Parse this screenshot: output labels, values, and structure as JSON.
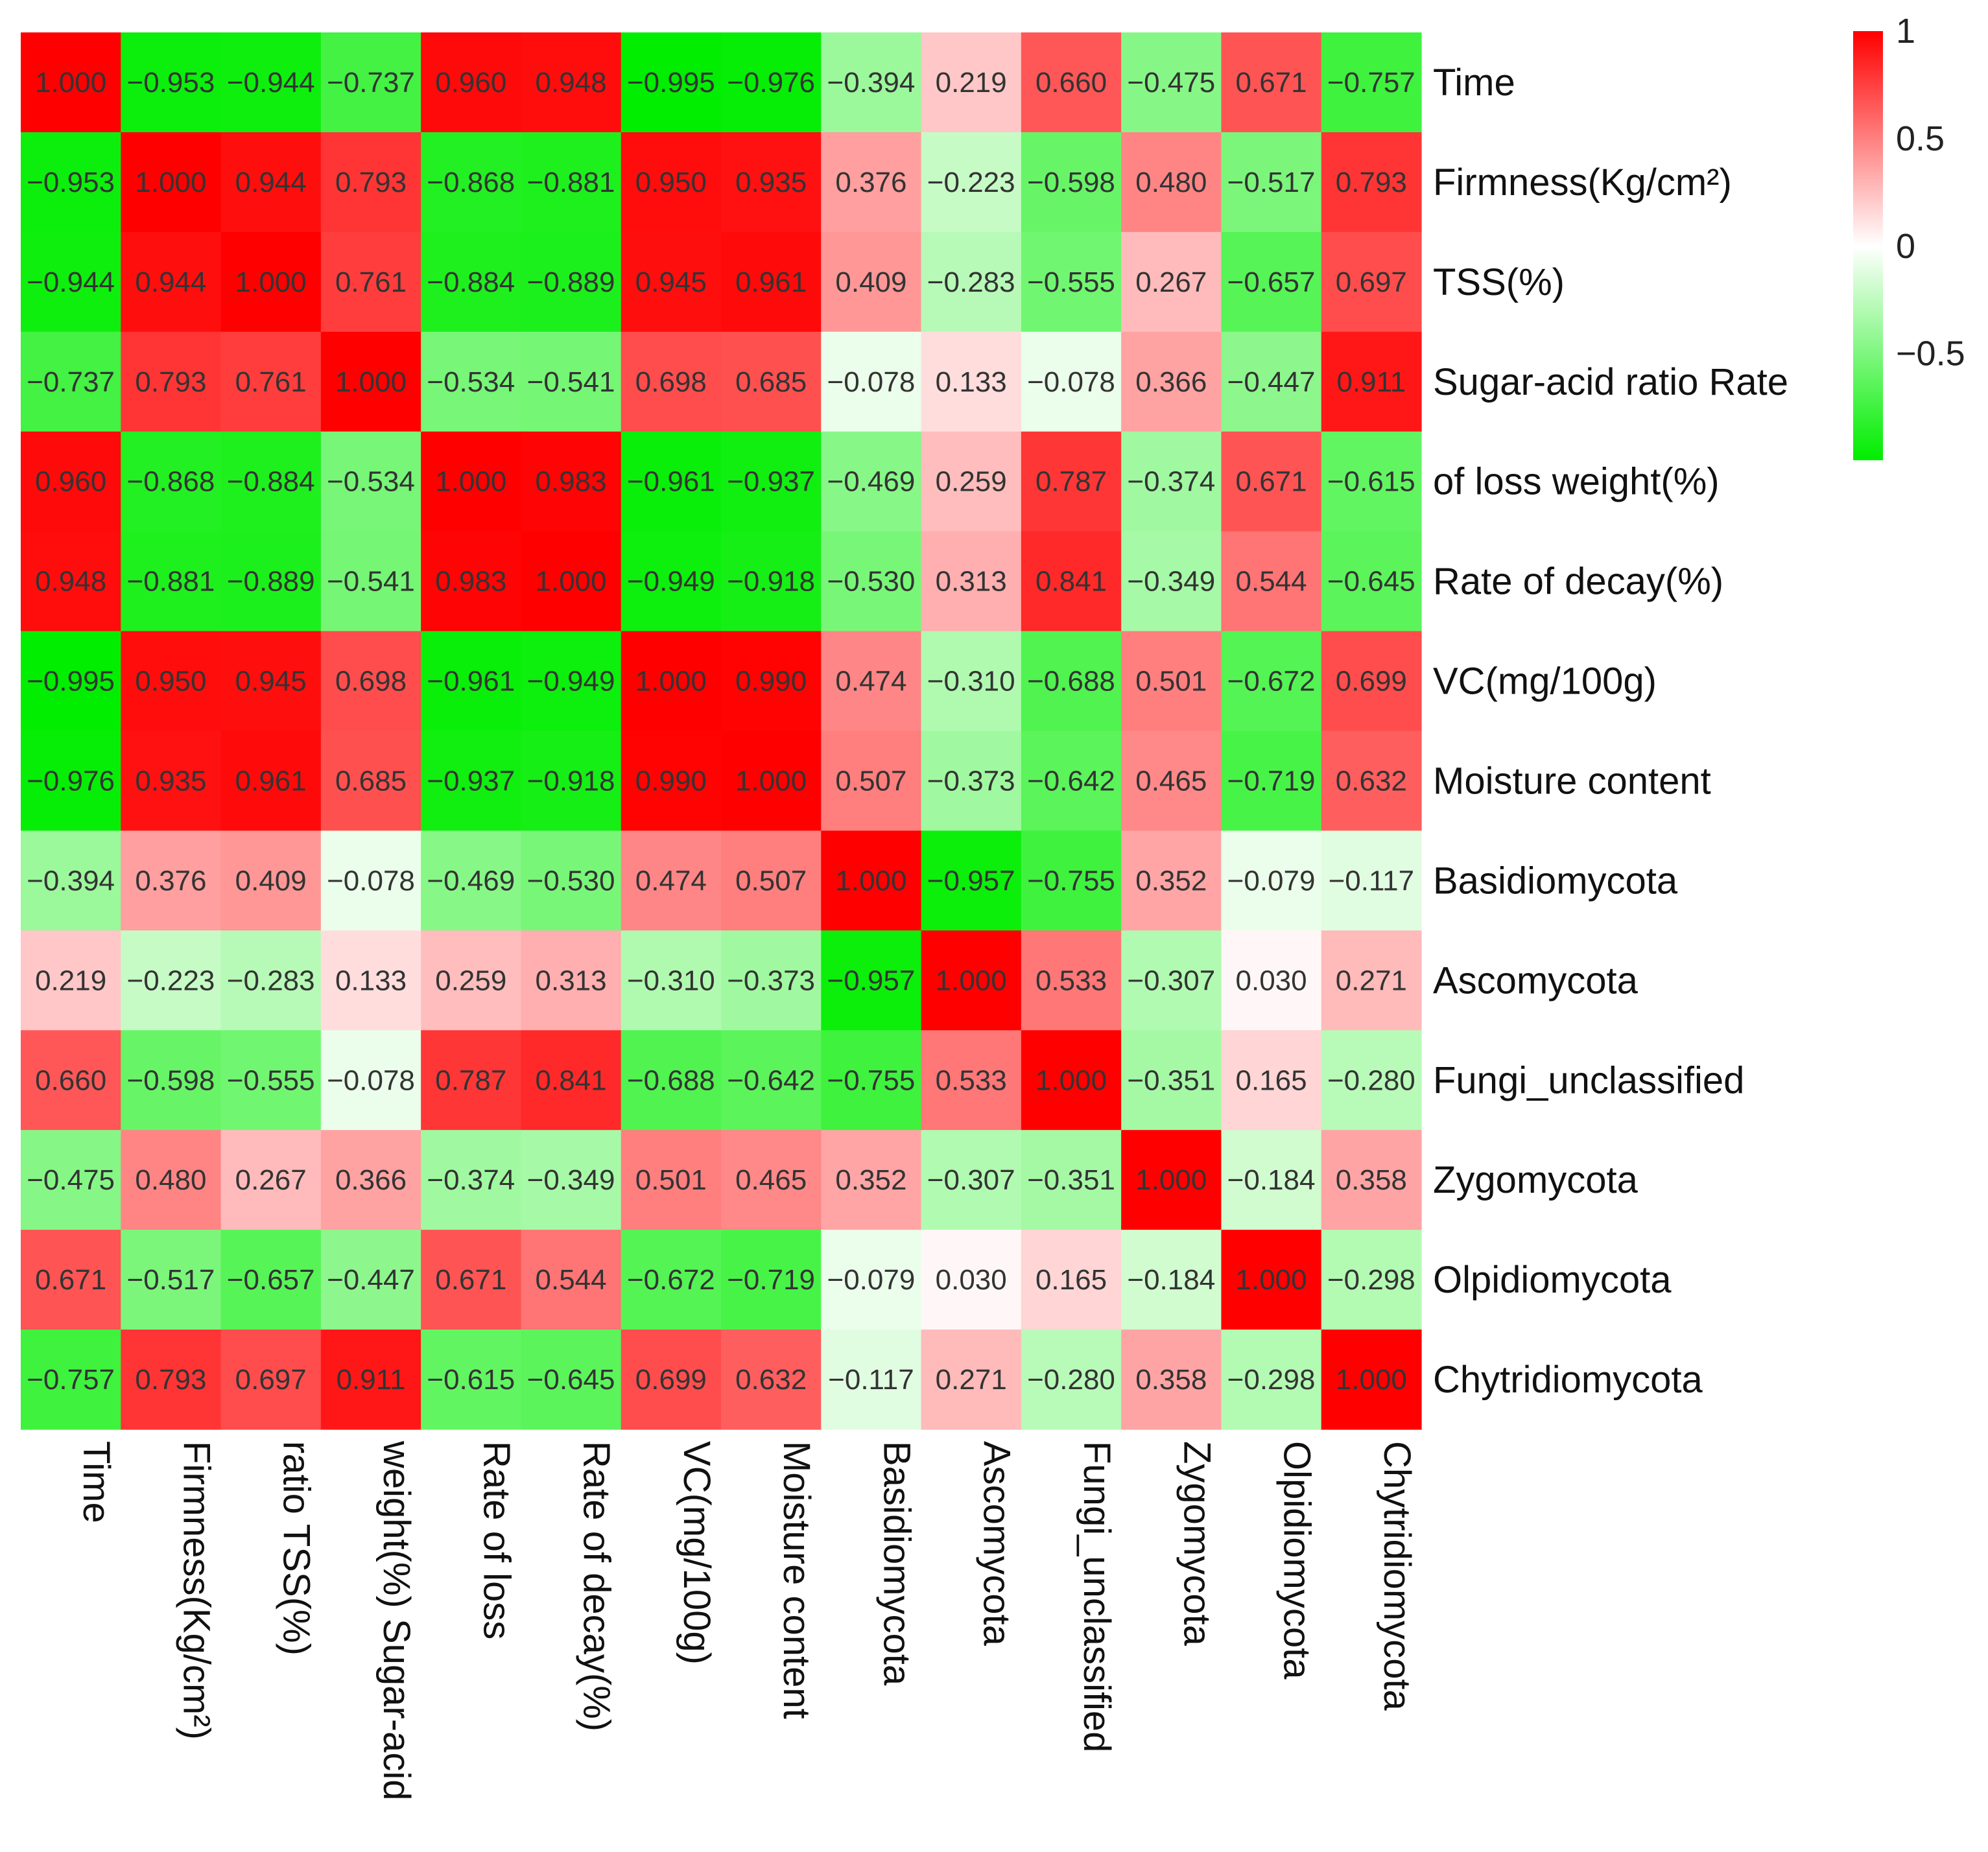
{
  "chart_data": {
    "type": "heatmap",
    "title": "",
    "row_labels": [
      "Time",
      "Firmness(Kg/cm²)",
      "TSS(%)",
      "Sugar-acid ratio Rate",
      "of loss weight(%)",
      "Rate of decay(%)",
      "VC(mg/100g)",
      "Moisture content",
      "Basidiomycota",
      "Ascomycota",
      "Fungi_unclassified",
      "Zygomycota",
      "Olpidiomycota",
      "Chytridiomycota"
    ],
    "col_labels": [
      "Time",
      "Firmness(Kg/cm²)",
      "ratio TSS(%)",
      "weight(%) Sugar-acid",
      "Rate of loss",
      "Rate of decay(%)",
      "VC(mg/100g)",
      "Moisture content",
      "Basidiomycota",
      "Ascomycota",
      "Fungi_unclassified",
      "Zygomycota",
      "Olpidiomycota",
      "Chytridiomycota"
    ],
    "values": [
      [
        1.0,
        -0.953,
        -0.944,
        -0.737,
        0.96,
        0.948,
        -0.995,
        -0.976,
        -0.394,
        0.219,
        0.66,
        -0.475,
        0.671,
        -0.757
      ],
      [
        -0.953,
        1.0,
        0.944,
        0.793,
        -0.868,
        -0.881,
        0.95,
        0.935,
        0.376,
        -0.223,
        -0.598,
        0.48,
        -0.517,
        0.793
      ],
      [
        -0.944,
        0.944,
        1.0,
        0.761,
        -0.884,
        -0.889,
        0.945,
        0.961,
        0.409,
        -0.283,
        -0.555,
        0.267,
        -0.657,
        0.697
      ],
      [
        -0.737,
        0.793,
        0.761,
        1.0,
        -0.534,
        -0.541,
        0.698,
        0.685,
        -0.078,
        0.133,
        -0.078,
        0.366,
        -0.447,
        0.911
      ],
      [
        0.96,
        -0.868,
        -0.884,
        -0.534,
        1.0,
        0.983,
        -0.961,
        -0.937,
        -0.469,
        0.259,
        0.787,
        -0.374,
        0.671,
        -0.615
      ],
      [
        0.948,
        -0.881,
        -0.889,
        -0.541,
        0.983,
        1.0,
        -0.949,
        -0.918,
        -0.53,
        0.313,
        0.841,
        -0.349,
        0.544,
        -0.645
      ],
      [
        -0.995,
        0.95,
        0.945,
        0.698,
        -0.961,
        -0.949,
        1.0,
        0.99,
        0.474,
        -0.31,
        -0.688,
        0.501,
        -0.672,
        0.699
      ],
      [
        -0.976,
        0.935,
        0.961,
        0.685,
        -0.937,
        -0.918,
        0.99,
        1.0,
        0.507,
        -0.373,
        -0.642,
        0.465,
        -0.719,
        0.632
      ],
      [
        -0.394,
        0.376,
        0.409,
        -0.078,
        -0.469,
        -0.53,
        0.474,
        0.507,
        1.0,
        -0.957,
        -0.755,
        0.352,
        -0.079,
        -0.117
      ],
      [
        0.219,
        -0.223,
        -0.283,
        0.133,
        0.259,
        0.313,
        -0.31,
        -0.373,
        -0.957,
        1.0,
        0.533,
        -0.307,
        0.03,
        0.271
      ],
      [
        0.66,
        -0.598,
        -0.555,
        -0.078,
        0.787,
        0.841,
        -0.688,
        -0.642,
        -0.755,
        0.533,
        1.0,
        -0.351,
        0.165,
        -0.28
      ],
      [
        -0.475,
        0.48,
        0.267,
        0.366,
        -0.374,
        -0.349,
        0.501,
        0.465,
        0.352,
        -0.307,
        -0.351,
        1.0,
        -0.184,
        0.358
      ],
      [
        0.671,
        -0.517,
        -0.657,
        -0.447,
        0.671,
        0.544,
        -0.672,
        -0.719,
        -0.079,
        0.03,
        0.165,
        -0.184,
        1.0,
        -0.298
      ],
      [
        -0.757,
        0.793,
        0.697,
        0.911,
        -0.615,
        -0.645,
        0.699,
        0.632,
        -0.117,
        0.271,
        -0.28,
        0.358,
        -0.298,
        1.0
      ]
    ],
    "color_scale": {
      "min_color": "#00ee00",
      "mid_color": "#ffffff",
      "max_color": "#ff0000",
      "range": [
        -1,
        1
      ]
    },
    "colorbar": {
      "ticks": [
        "1",
        "0.5",
        "0",
        "−0.5"
      ],
      "tick_values": [
        1,
        0.5,
        0,
        -0.5
      ],
      "range": [
        -0.995,
        1
      ]
    }
  }
}
